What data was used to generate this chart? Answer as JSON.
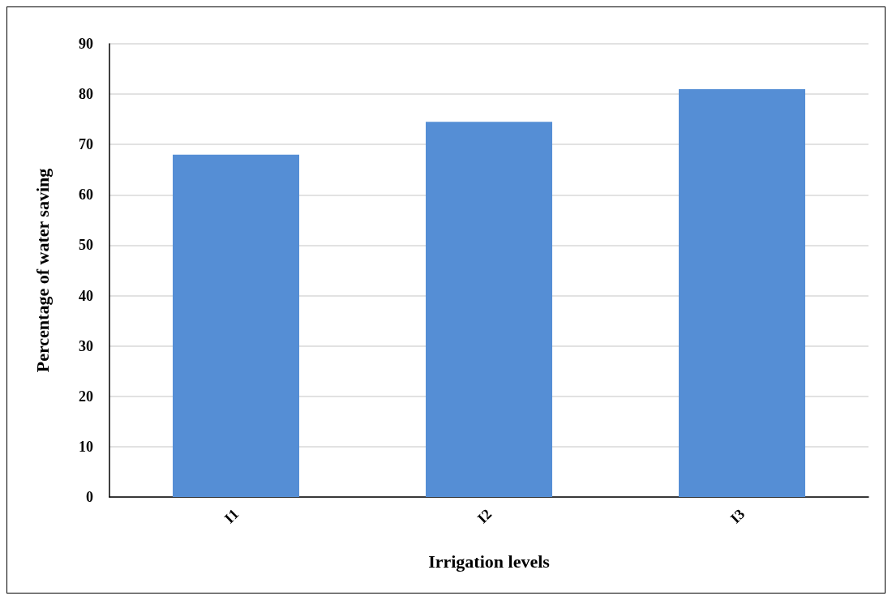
{
  "chart_data": {
    "type": "bar",
    "xlabel": "Irrigation levels",
    "ylabel": "Percentage of water saving",
    "categories": [
      "I1",
      "I2",
      "I3"
    ],
    "values": [
      68,
      74.5,
      81
    ],
    "color": "#558ed5",
    "ylim": [
      0,
      90
    ],
    "yticks": [
      0,
      10,
      20,
      30,
      40,
      50,
      60,
      70,
      80,
      90
    ],
    "grid": "y"
  }
}
